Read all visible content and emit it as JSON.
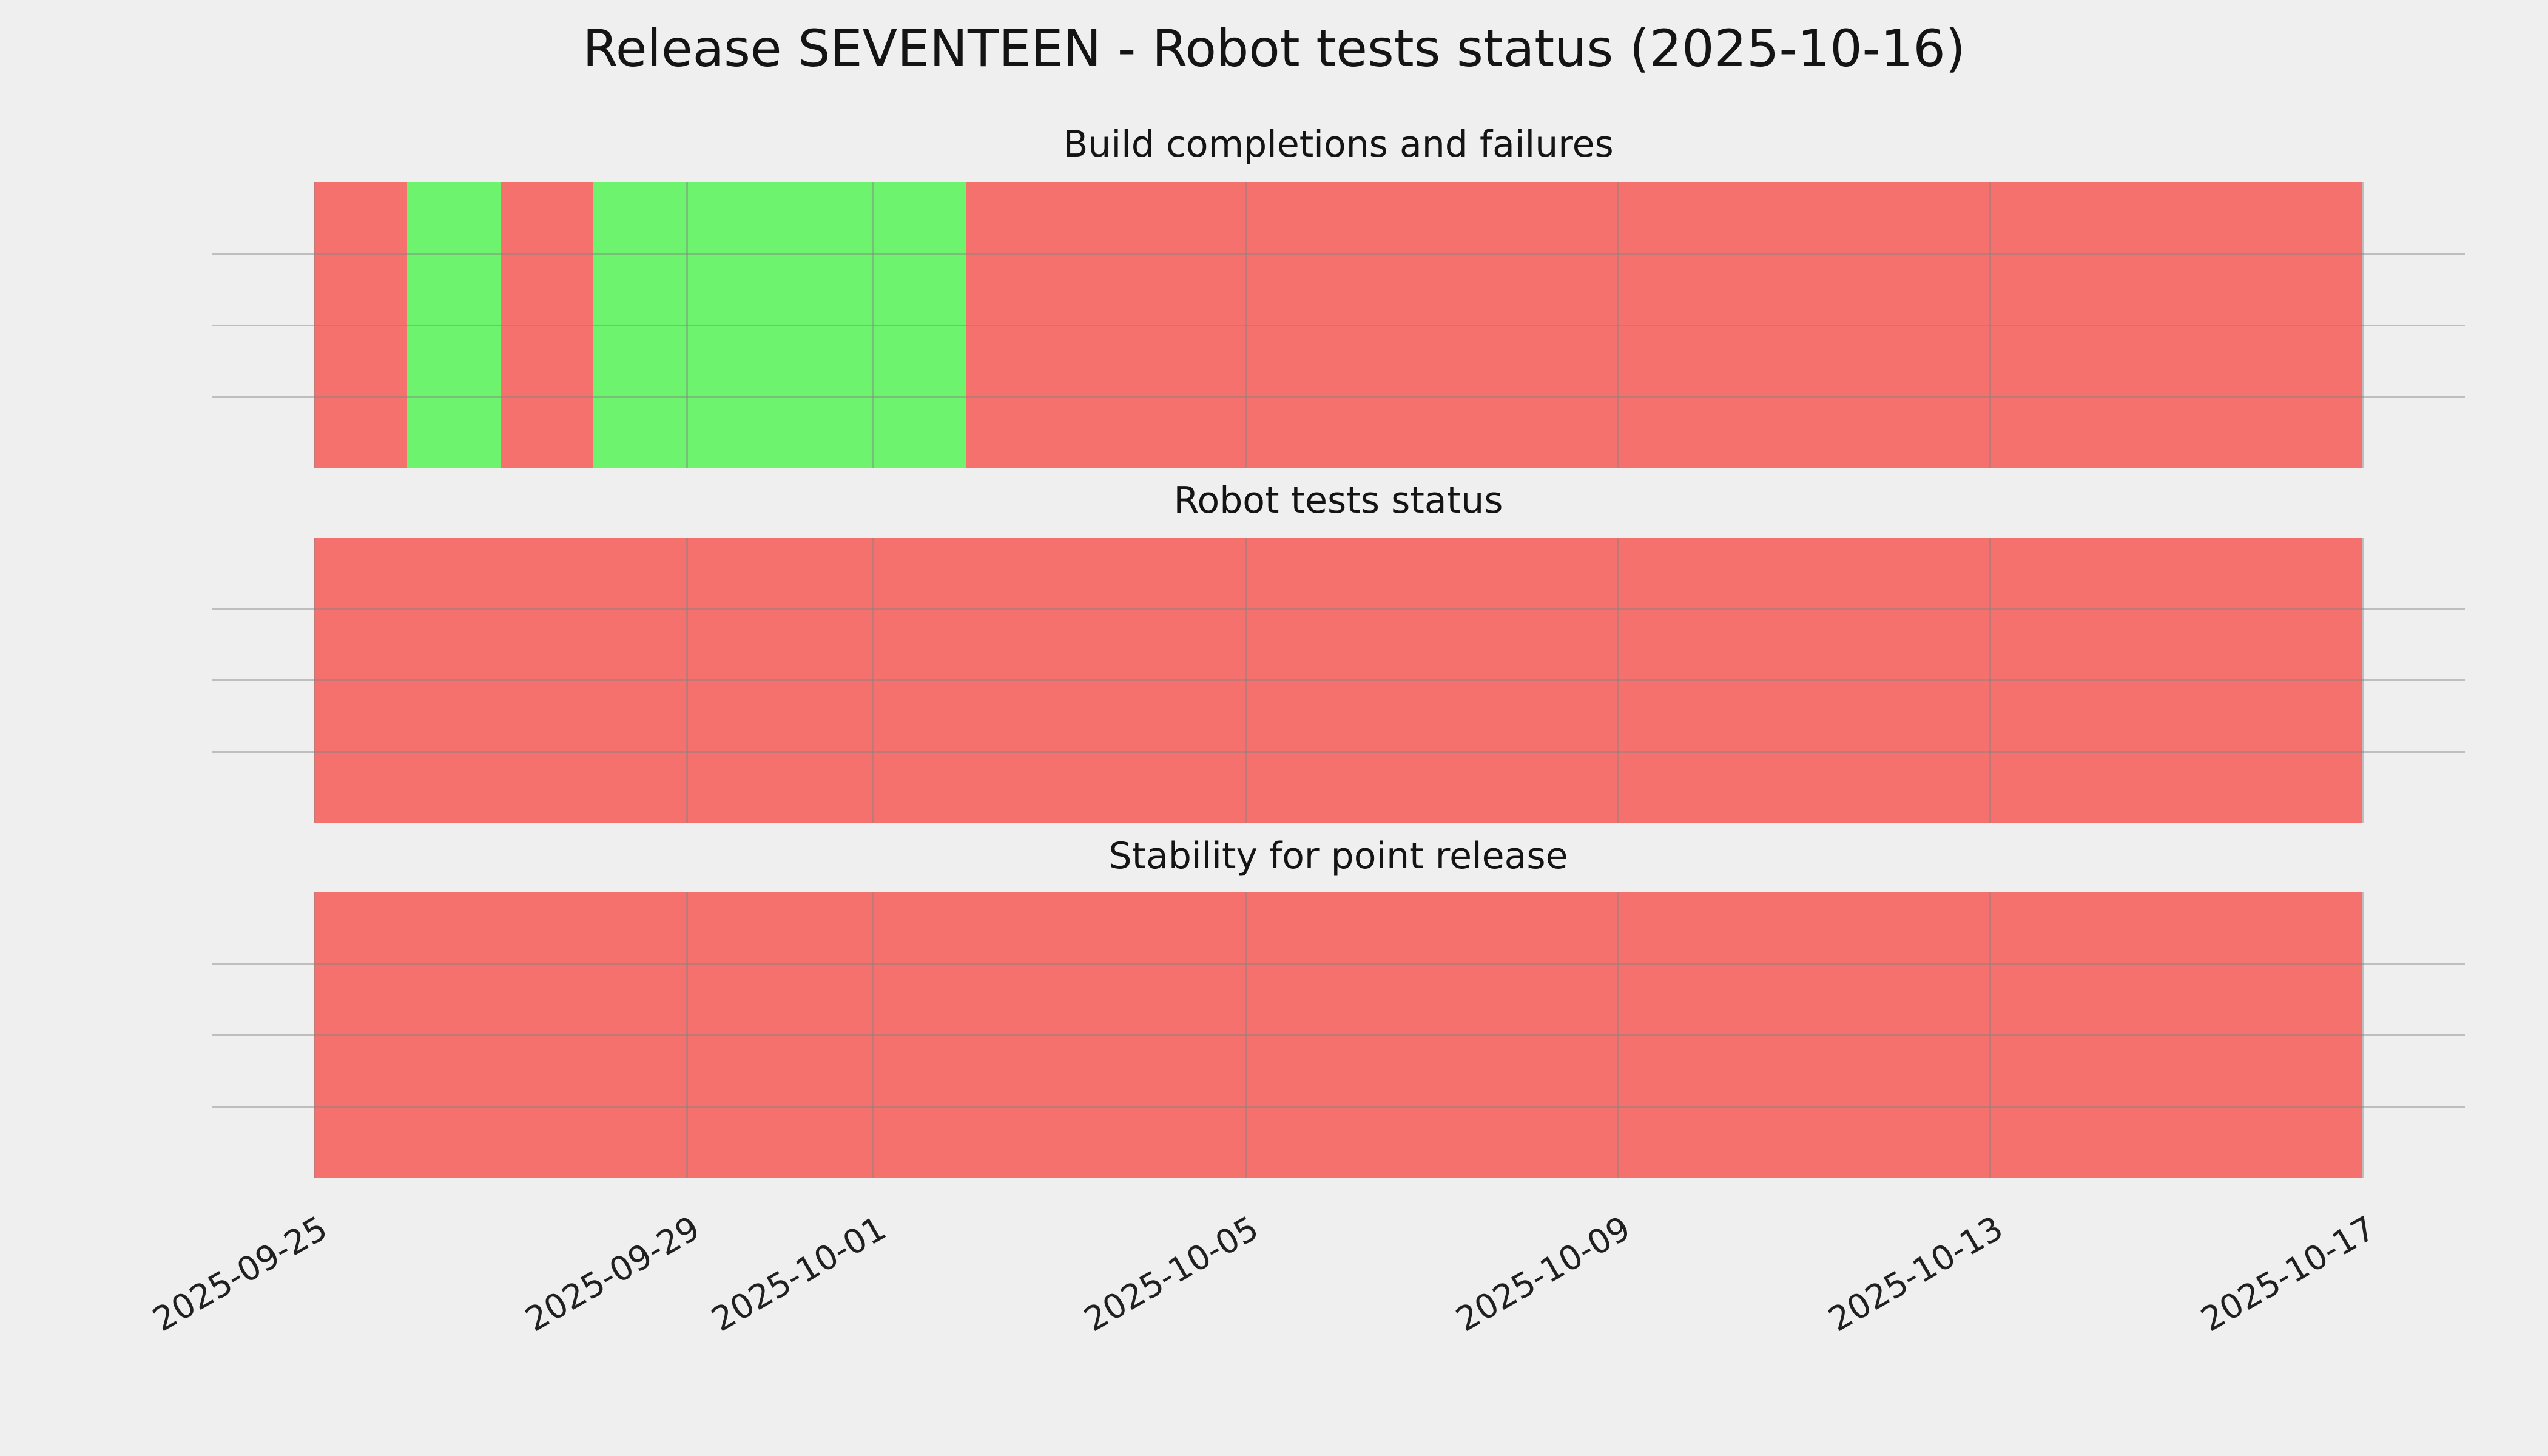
{
  "figure": {
    "background": "#efefef",
    "grid_color": "rgba(130,130,130,0.45)",
    "text_color": "#141414"
  },
  "chart_data": {
    "type": "timeline",
    "title": "Release SEVENTEEN - Robot tests status (2025-10-16)",
    "x_start": "2025-09-25",
    "x_end": "2025-10-17",
    "x_ticks": [
      "2025-09-25",
      "2025-09-29",
      "2025-10-01",
      "2025-10-05",
      "2025-10-09",
      "2025-10-13",
      "2025-10-17"
    ],
    "grid": "on",
    "legend": "none",
    "status_colors": {
      "pass": "#6df36e",
      "fail": "#f4716d"
    },
    "charts": [
      {
        "title": "Build completions and failures",
        "segments": [
          {
            "start": "2025-09-25",
            "end": "2025-09-26",
            "status": "fail"
          },
          {
            "start": "2025-09-26",
            "end": "2025-09-27",
            "status": "pass"
          },
          {
            "start": "2025-09-27",
            "end": "2025-09-28",
            "status": "fail"
          },
          {
            "start": "2025-09-28",
            "end": "2025-10-02",
            "status": "pass"
          },
          {
            "start": "2025-10-02",
            "end": "2025-10-17",
            "status": "fail"
          }
        ]
      },
      {
        "title": "Robot tests status",
        "segments": [
          {
            "start": "2025-09-25",
            "end": "2025-10-17",
            "status": "fail"
          }
        ]
      },
      {
        "title": "Stability for point release",
        "segments": [
          {
            "start": "2025-09-25",
            "end": "2025-10-17",
            "status": "fail"
          }
        ]
      }
    ]
  }
}
